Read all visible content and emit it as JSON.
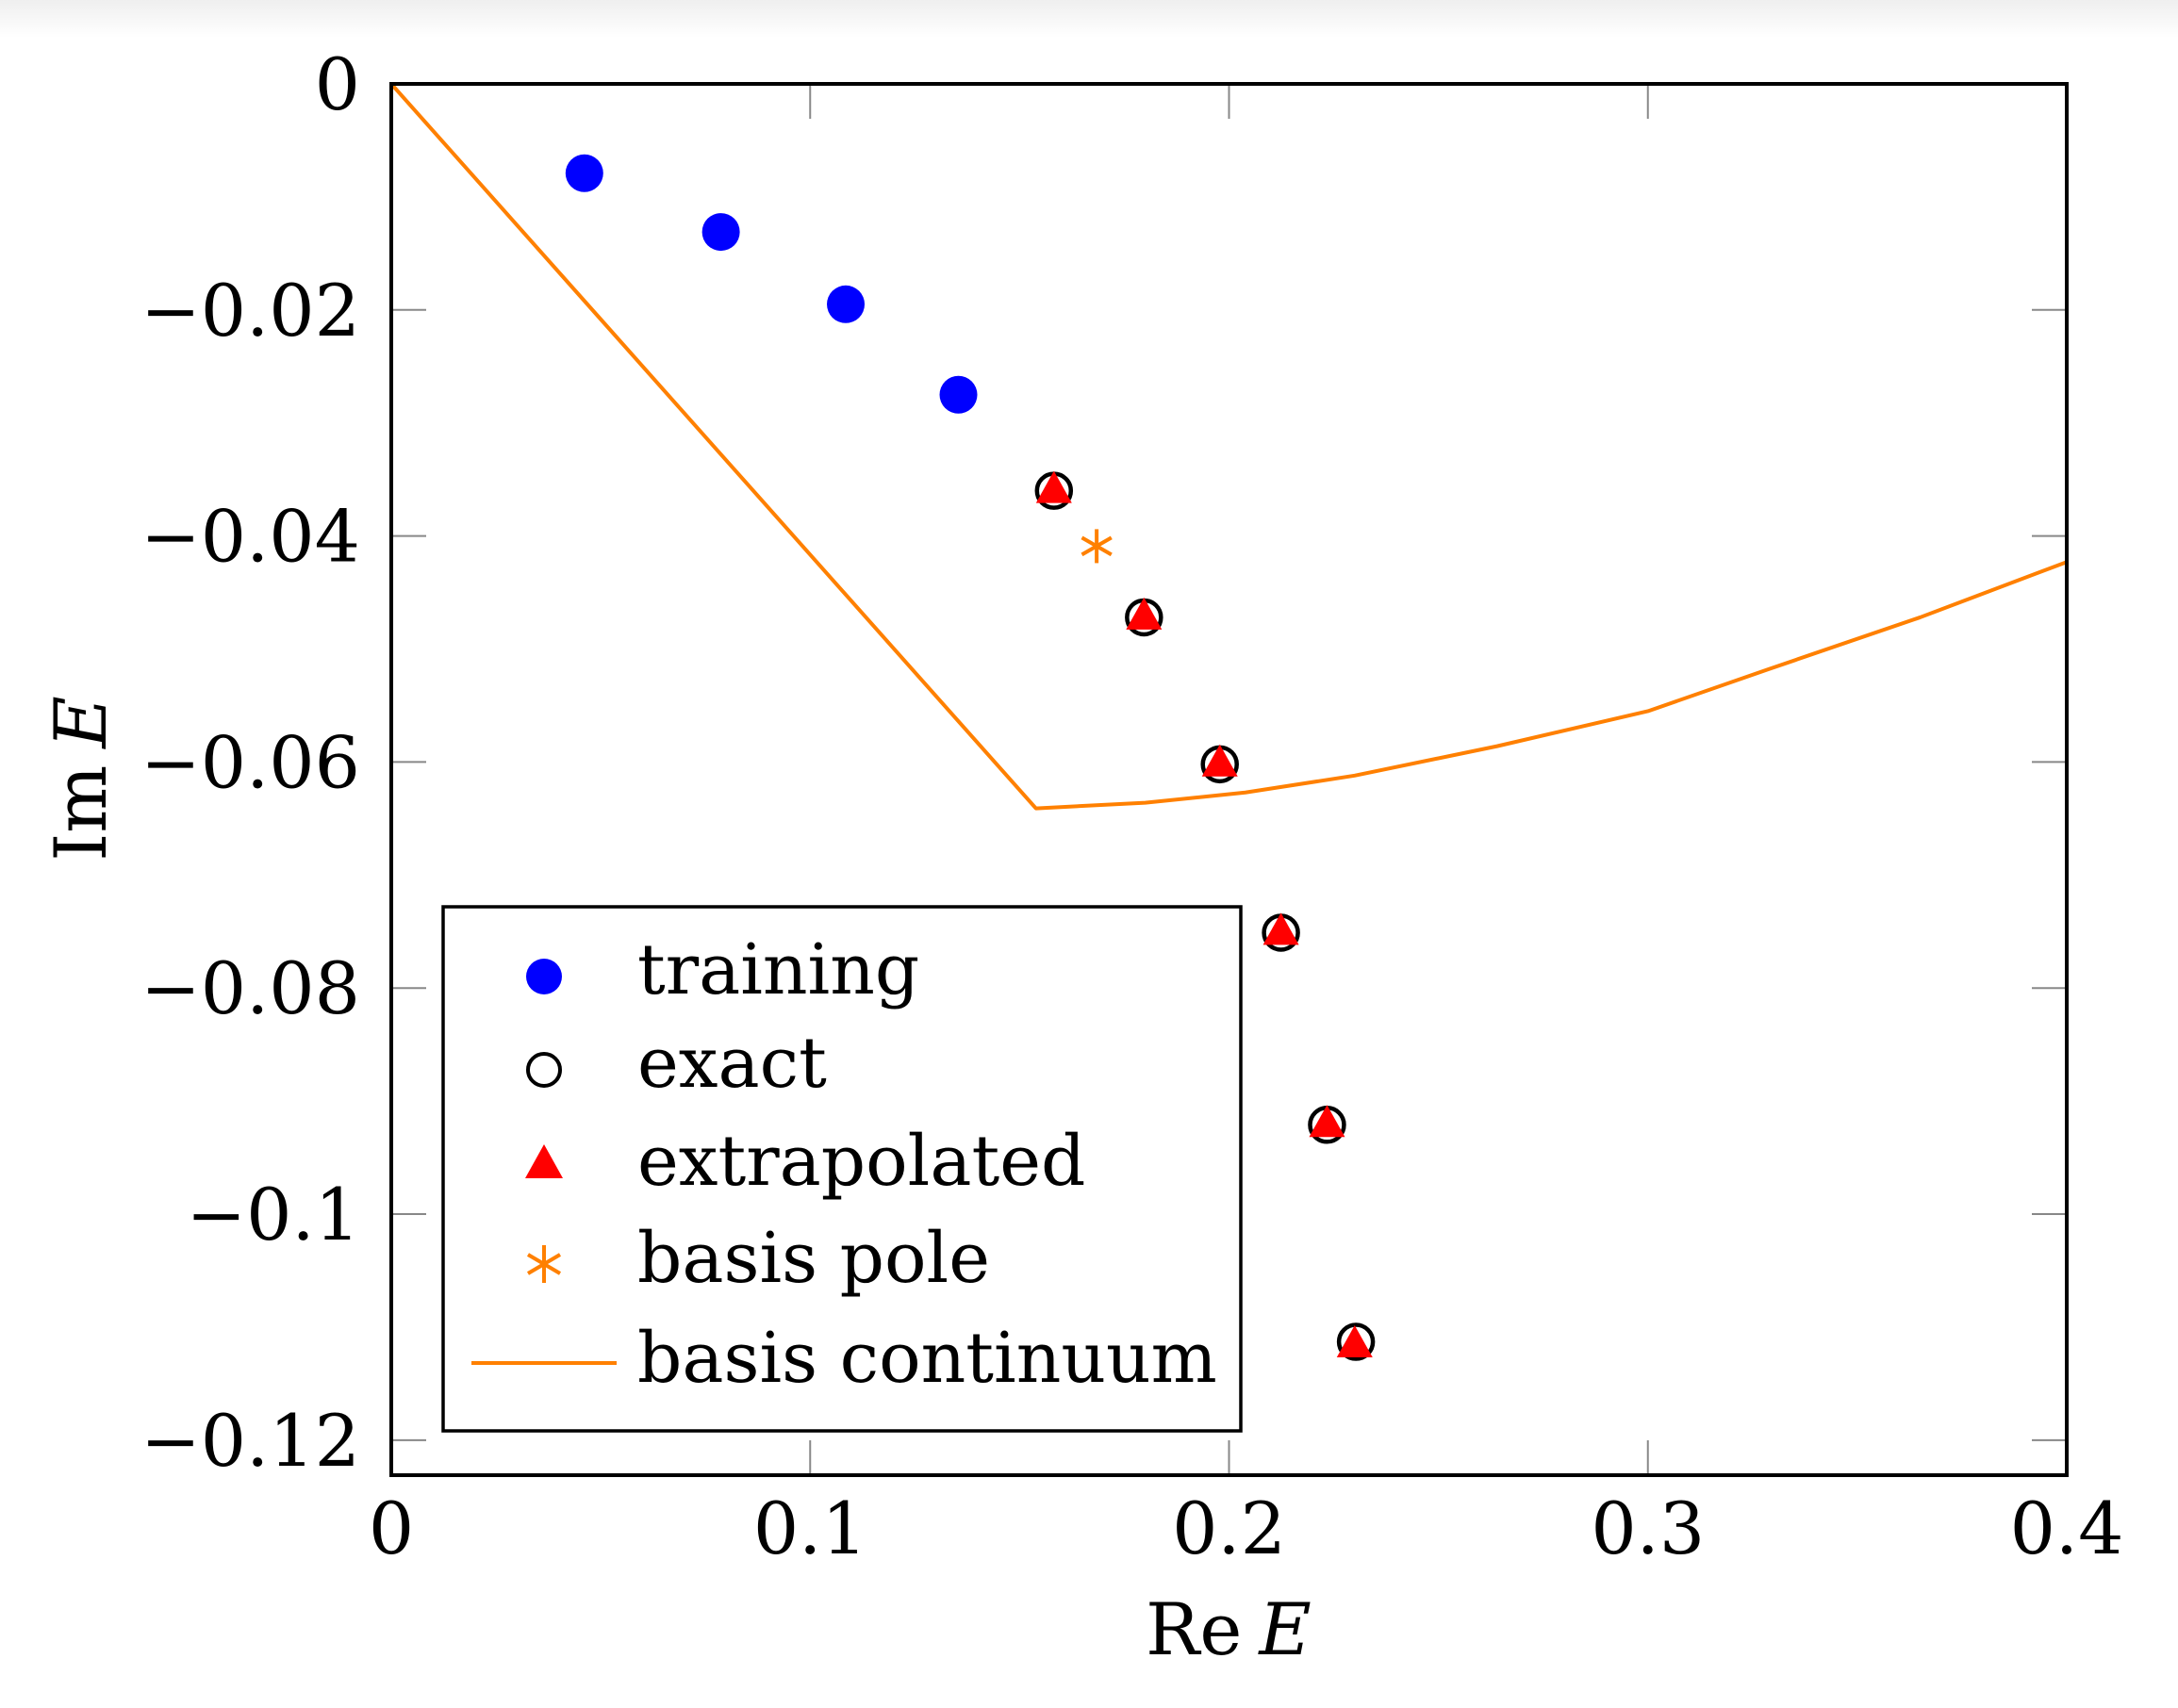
{
  "chart_data": {
    "type": "scatter",
    "title": "",
    "xlabel": "Re E",
    "xlabel_parts": {
      "prefix": "Re",
      "symbol": "E"
    },
    "ylabel": "Im E",
    "ylabel_parts": {
      "prefix": "Im",
      "symbol": "E"
    },
    "xlim": [
      0,
      0.4
    ],
    "ylim": [
      -0.1231,
      0
    ],
    "grid": false,
    "x_ticks": [
      0,
      0.1,
      0.2,
      0.3,
      0.4
    ],
    "x_tick_labels": [
      "0",
      "0.1",
      "0.2",
      "0.3",
      "0.4"
    ],
    "y_ticks": [
      0,
      -0.02,
      -0.04,
      -0.06,
      -0.08,
      -0.1,
      -0.12
    ],
    "y_tick_labels": [
      "0",
      "−0.02",
      "−0.04",
      "−0.06",
      "−0.08",
      "−0.1",
      "−0.12"
    ],
    "legend_position": "bottom-left",
    "series": [
      {
        "name": "training",
        "marker": "filled-circle",
        "color": "#0000ff",
        "x": [
          0.0461,
          0.0787,
          0.1085,
          0.1354
        ],
        "y": [
          -0.0079,
          -0.0131,
          -0.0195,
          -0.0275
        ]
      },
      {
        "name": "exact",
        "marker": "open-circle",
        "color": "#000000",
        "x": [
          0.1582,
          0.1797,
          0.1978,
          0.2124,
          0.2234,
          0.2303
        ],
        "y": [
          -0.036,
          -0.0472,
          -0.0602,
          -0.0751,
          -0.0921,
          -0.1113
        ]
      },
      {
        "name": "extrapolated",
        "marker": "filled-triangle",
        "color": "#ff0000",
        "x": [
          0.1582,
          0.1797,
          0.1978,
          0.2124,
          0.2234,
          0.23
        ],
        "y": [
          -0.036,
          -0.0472,
          -0.0602,
          -0.0751,
          -0.0921,
          -0.1116
        ]
      },
      {
        "name": "basis pole",
        "marker": "asterisk",
        "color": "#ff8000",
        "x": [
          0.1684
        ],
        "y": [
          -0.0409
        ]
      },
      {
        "name": "basis continuum",
        "marker": "line",
        "color": "#ff8000",
        "x": [
          0,
          0.1539,
          0.18,
          0.2039,
          0.23,
          0.264,
          0.3,
          0.3287,
          0.365,
          0.4
        ],
        "y": [
          0,
          -0.0641,
          -0.0636,
          -0.0627,
          -0.0612,
          -0.0586,
          -0.0555,
          -0.0518,
          -0.0472,
          -0.0423
        ]
      }
    ]
  },
  "legend": {
    "items": [
      "training",
      "exact",
      "extrapolated",
      "basis pole",
      "basis continuum"
    ]
  }
}
